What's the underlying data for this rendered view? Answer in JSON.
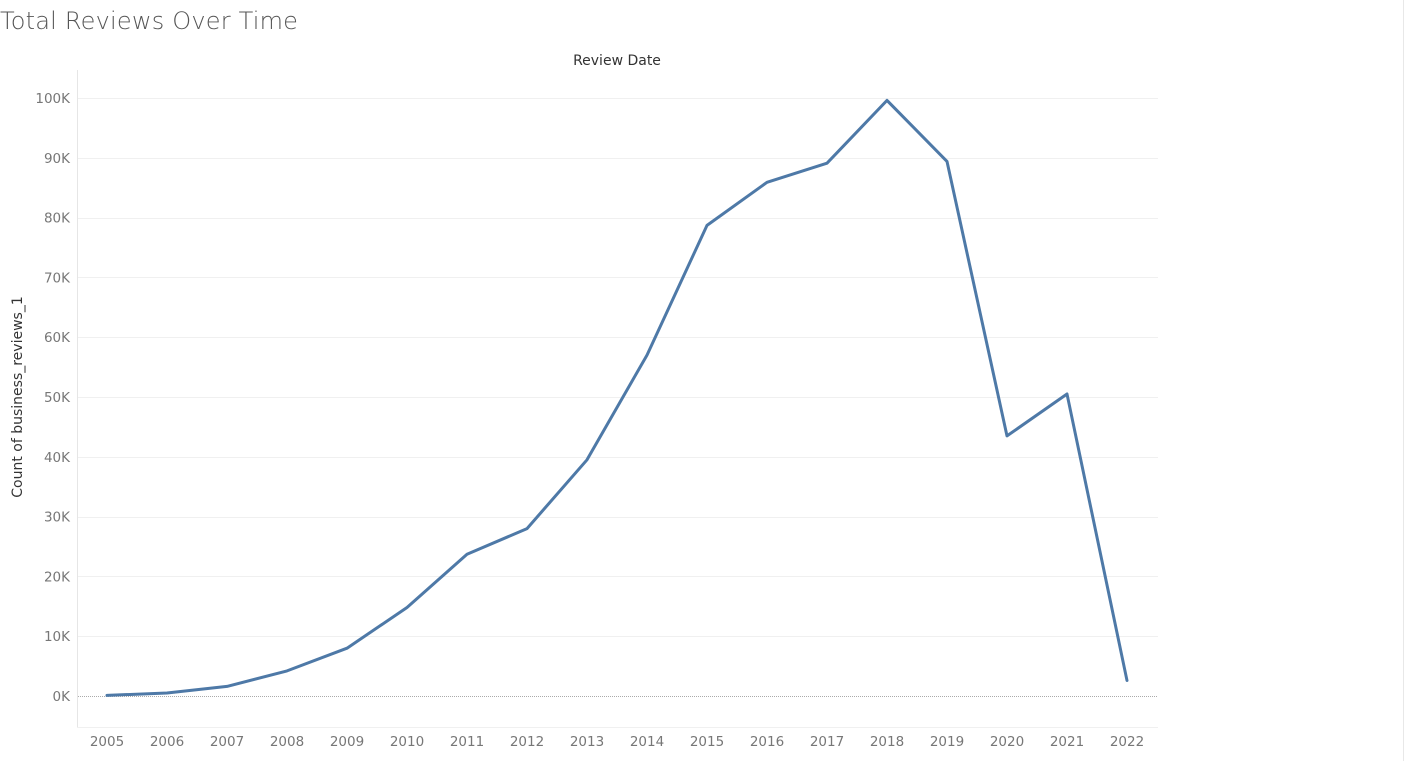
{
  "page": {
    "title": "Total Reviews Over Time"
  },
  "chart_data": {
    "type": "line",
    "title": "Total Reviews Over Time",
    "xlabel": "Review Date",
    "ylabel": "Count of business_reviews_1",
    "x_axis_position": "top",
    "categories": [
      "2005",
      "2006",
      "2007",
      "2008",
      "2009",
      "2010",
      "2011",
      "2012",
      "2013",
      "2014",
      "2015",
      "2016",
      "2017",
      "2018",
      "2019",
      "2020",
      "2021",
      "2022"
    ],
    "series": [
      {
        "values": [
          100,
          500,
          1600,
          4200,
          8000,
          14800,
          23700,
          28000,
          39500,
          57000,
          78700,
          85900,
          89100,
          99600,
          89400,
          43500,
          50500,
          2600
        ],
        "color": "#4e79a7"
      }
    ],
    "yticks": [
      0,
      10000,
      20000,
      30000,
      40000,
      50000,
      60000,
      70000,
      80000,
      90000,
      100000
    ],
    "ytick_labels": [
      "0K",
      "10K",
      "20K",
      "30K",
      "40K",
      "50K",
      "60K",
      "70K",
      "80K",
      "90K",
      "100K"
    ],
    "ylim": [
      -5000,
      105000
    ],
    "grid": true,
    "legend": "none",
    "colors": {
      "line": "#4e79a7",
      "grid": "#f0f0f0",
      "zero_line": "#aaaaaa"
    }
  }
}
